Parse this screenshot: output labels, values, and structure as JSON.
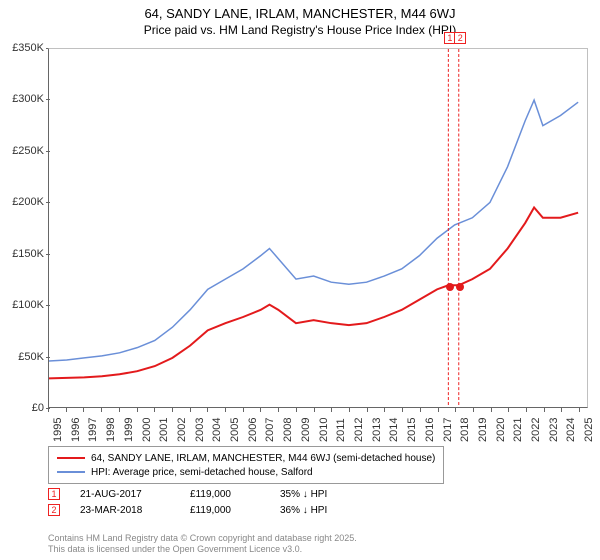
{
  "title": {
    "main": "64, SANDY LANE, IRLAM, MANCHESTER, M44 6WJ",
    "sub": "Price paid vs. HM Land Registry's House Price Index (HPI)"
  },
  "chart": {
    "type": "line",
    "background_color": "#ffffff",
    "border_color": "#666666",
    "y_axis": {
      "min": 0,
      "max": 350000,
      "tick_step": 50000,
      "tick_labels": [
        "£0",
        "£50K",
        "£100K",
        "£150K",
        "£200K",
        "£250K",
        "£300K",
        "£350K"
      ],
      "label_fontsize": 11
    },
    "x_axis": {
      "min": 1995,
      "max": 2025.5,
      "ticks": [
        1995,
        1996,
        1997,
        1998,
        1999,
        2000,
        2001,
        2002,
        2003,
        2004,
        2005,
        2006,
        2007,
        2008,
        2009,
        2010,
        2011,
        2012,
        2013,
        2014,
        2015,
        2016,
        2017,
        2018,
        2019,
        2020,
        2021,
        2022,
        2023,
        2024,
        2025
      ],
      "label_fontsize": 11
    },
    "series": [
      {
        "name": "property",
        "label": "64, SANDY LANE, IRLAM, MANCHESTER, M44 6WJ (semi-detached house)",
        "color": "#e31a1c",
        "line_width": 2,
        "points": [
          [
            1995,
            28000
          ],
          [
            1996,
            28500
          ],
          [
            1997,
            29000
          ],
          [
            1998,
            30000
          ],
          [
            1999,
            32000
          ],
          [
            2000,
            35000
          ],
          [
            2001,
            40000
          ],
          [
            2002,
            48000
          ],
          [
            2003,
            60000
          ],
          [
            2004,
            75000
          ],
          [
            2005,
            82000
          ],
          [
            2006,
            88000
          ],
          [
            2007,
            95000
          ],
          [
            2007.5,
            100000
          ],
          [
            2008,
            95000
          ],
          [
            2009,
            82000
          ],
          [
            2010,
            85000
          ],
          [
            2011,
            82000
          ],
          [
            2012,
            80000
          ],
          [
            2013,
            82000
          ],
          [
            2014,
            88000
          ],
          [
            2015,
            95000
          ],
          [
            2016,
            105000
          ],
          [
            2017,
            115000
          ],
          [
            2017.64,
            119000
          ],
          [
            2018,
            119000
          ],
          [
            2018.23,
            119000
          ],
          [
            2019,
            125000
          ],
          [
            2020,
            135000
          ],
          [
            2021,
            155000
          ],
          [
            2022,
            180000
          ],
          [
            2022.5,
            195000
          ],
          [
            2023,
            185000
          ],
          [
            2024,
            185000
          ],
          [
            2025,
            190000
          ]
        ]
      },
      {
        "name": "hpi",
        "label": "HPI: Average price, semi-detached house, Salford",
        "color": "#6a8fd8",
        "line_width": 1.5,
        "points": [
          [
            1995,
            45000
          ],
          [
            1996,
            46000
          ],
          [
            1997,
            48000
          ],
          [
            1998,
            50000
          ],
          [
            1999,
            53000
          ],
          [
            2000,
            58000
          ],
          [
            2001,
            65000
          ],
          [
            2002,
            78000
          ],
          [
            2003,
            95000
          ],
          [
            2004,
            115000
          ],
          [
            2005,
            125000
          ],
          [
            2006,
            135000
          ],
          [
            2007,
            148000
          ],
          [
            2007.5,
            155000
          ],
          [
            2008,
            145000
          ],
          [
            2009,
            125000
          ],
          [
            2010,
            128000
          ],
          [
            2011,
            122000
          ],
          [
            2012,
            120000
          ],
          [
            2013,
            122000
          ],
          [
            2014,
            128000
          ],
          [
            2015,
            135000
          ],
          [
            2016,
            148000
          ],
          [
            2017,
            165000
          ],
          [
            2018,
            178000
          ],
          [
            2019,
            185000
          ],
          [
            2020,
            200000
          ],
          [
            2021,
            235000
          ],
          [
            2022,
            280000
          ],
          [
            2022.5,
            300000
          ],
          [
            2023,
            275000
          ],
          [
            2024,
            285000
          ],
          [
            2025,
            298000
          ]
        ]
      }
    ],
    "markers": [
      {
        "id": "1",
        "x": 2017.64,
        "y": 119000,
        "line_color": "#e22",
        "dash": "3,2"
      },
      {
        "id": "2",
        "x": 2018.23,
        "y": 119000,
        "line_color": "#e22",
        "dash": "3,2"
      }
    ]
  },
  "legend": {
    "border_color": "#999999",
    "fontsize": 10
  },
  "sales": [
    {
      "id": "1",
      "date": "21-AUG-2017",
      "price": "£119,000",
      "hpi": "35% ↓ HPI"
    },
    {
      "id": "2",
      "date": "23-MAR-2018",
      "price": "£119,000",
      "hpi": "36% ↓ HPI"
    }
  ],
  "footer": {
    "line1": "Contains HM Land Registry data © Crown copyright and database right 2025.",
    "line2": "This data is licensed under the Open Government Licence v3.0."
  }
}
